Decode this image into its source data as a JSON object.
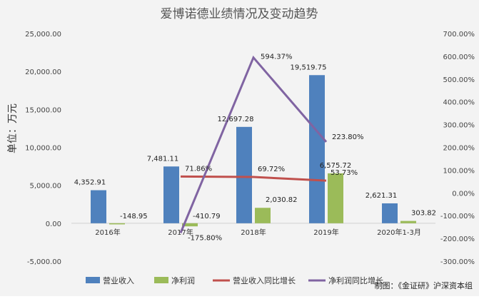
{
  "chart_data": {
    "type": "bar",
    "title": "爱博诺德业绩情况及变动趋势",
    "ylabel": "单位：万元",
    "categories": [
      "2016年",
      "2017年",
      "2018年",
      "2019年",
      "2020年1-3月"
    ],
    "ylim": [
      -5000,
      25000
    ],
    "y2lim": [
      -300,
      700
    ],
    "y_ticks": [
      "25,000.00",
      "20,000.00",
      "15,000.00",
      "10,000.00",
      "5,000.00",
      "0.00",
      "-5,000.00"
    ],
    "y2_ticks": [
      "700.00%",
      "600.00%",
      "500.00%",
      "400.00%",
      "300.00%",
      "200.00%",
      "100.00%",
      "0.00%",
      "-100.00%",
      "-200.00%",
      "-300.00%"
    ],
    "series": [
      {
        "name": "营业收入",
        "kind": "bar",
        "axis": "left",
        "color": "#4f81bd",
        "values": [
          4352.91,
          7481.11,
          12697.28,
          19519.75,
          2621.31
        ],
        "labels": [
          "4,352.91",
          "7,481.11",
          "12,697.28",
          "19,519.75",
          "2,621.31"
        ]
      },
      {
        "name": "净利润",
        "kind": "bar",
        "axis": "left",
        "color": "#9bbb59",
        "values": [
          -148.95,
          -410.79,
          2030.82,
          6575.72,
          303.82
        ],
        "labels": [
          "-148.95",
          "-410.79",
          "2,030.82",
          "6,575.72",
          "303.82"
        ]
      },
      {
        "name": "营业收入同比增长",
        "kind": "line",
        "axis": "right",
        "color": "#c0504d",
        "values": [
          null,
          71.86,
          69.72,
          53.73,
          null
        ],
        "labels": [
          "",
          "71.86%",
          "69.72%",
          "53.73%",
          ""
        ]
      },
      {
        "name": "净利润同比增长",
        "kind": "line",
        "axis": "right",
        "color": "#8064a2",
        "values": [
          null,
          -175.8,
          594.37,
          223.8,
          null
        ],
        "labels": [
          "",
          "-175.80%",
          "594.37%",
          "223.80%",
          ""
        ]
      }
    ],
    "legend_position": "bottom",
    "grid": false
  },
  "source": "制图：《金证研》沪深资本组"
}
